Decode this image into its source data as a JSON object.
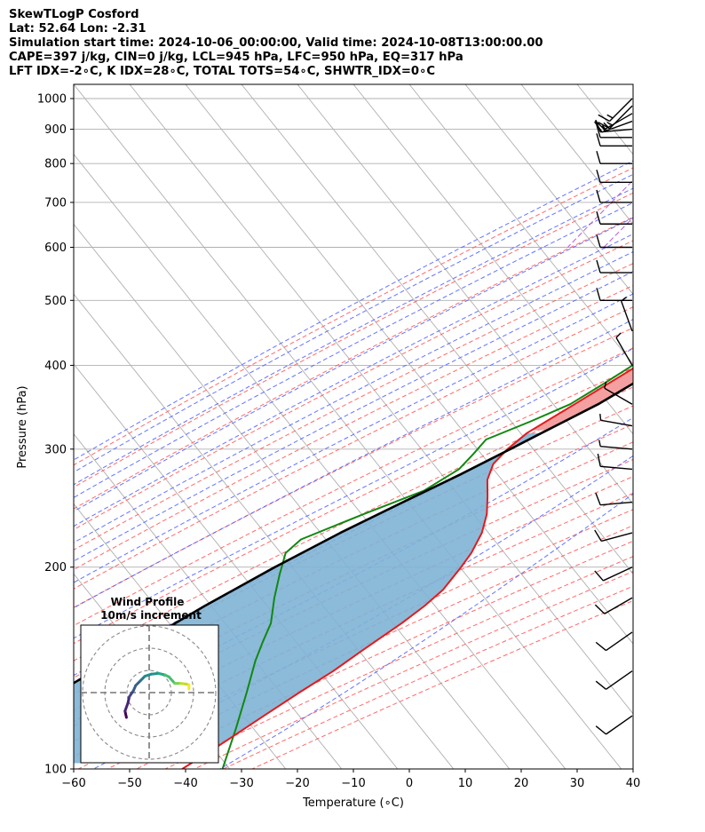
{
  "header": {
    "line1": "SkewTLogP Cosford",
    "line2": "Lat: 52.64   Lon: -2.31",
    "line3": "Simulation start time: 2024-10-06_00:00:00, Valid time: 2024-10-08T13:00:00.00",
    "line4": "CAPE=397 j/kg, CIN=0 j/kg, LCL=945 hPa, LFC=950 hPa, EQ=317 hPa",
    "line5": "LFT IDX=-2∘C, K IDX=28∘C, TOTAL TOTS=54∘C, SHWTR_IDX=0∘C"
  },
  "chart_data": {
    "type": "skew-t log-p",
    "xlabel": "Temperature (∘C)",
    "ylabel": "Pressure (hPa)",
    "xlim": [
      -60,
      40
    ],
    "ylim": [
      1050,
      100
    ],
    "x_ticks": [
      "−60",
      "−50",
      "−40",
      "−30",
      "−20",
      "−10",
      "0",
      "10",
      "20",
      "30",
      "40"
    ],
    "x_tick_values": [
      -60,
      -50,
      -40,
      -30,
      -20,
      -10,
      0,
      10,
      20,
      30,
      40
    ],
    "y_ticks": [
      "100",
      "200",
      "300",
      "400",
      "500",
      "600",
      "700",
      "800",
      "900",
      "1000"
    ],
    "y_tick_values": [
      100,
      200,
      300,
      400,
      500,
      600,
      700,
      800,
      900,
      1000
    ],
    "grid": true,
    "colors": {
      "temperature": "#e41a1c",
      "dewpoint": "#118811",
      "parcel": "#000000",
      "cape_fill": "#7fb2d5",
      "cin_fill": "#f4a0a0",
      "dry_adiabats": "#ff5a5a",
      "moist_adiabats": "#4a5aff",
      "mixing_ratio": "#b04ad0",
      "isotherms": "#b0b0b0"
    },
    "series": [
      {
        "key": "temperature",
        "points": [
          [
            1000,
            15.4
          ],
          [
            975,
            14.6
          ],
          [
            950,
            14.0
          ],
          [
            925,
            12.8
          ],
          [
            900,
            11.4
          ],
          [
            850,
            9.2
          ],
          [
            800,
            7.0
          ],
          [
            750,
            4.4
          ],
          [
            700,
            1.8
          ],
          [
            650,
            -0.6
          ],
          [
            600,
            -3.0
          ],
          [
            550,
            -5.8
          ],
          [
            500,
            -8.8
          ],
          [
            450,
            -12.6
          ],
          [
            400,
            -16.8
          ],
          [
            350,
            -22.6
          ],
          [
            317,
            -27.0
          ],
          [
            300,
            -28.2
          ],
          [
            285,
            -28.6
          ],
          [
            270,
            -27.4
          ],
          [
            255,
            -25.0
          ],
          [
            240,
            -22.6
          ],
          [
            225,
            -20.8
          ],
          [
            210,
            -19.8
          ],
          [
            200,
            -19.6
          ],
          [
            185,
            -19.6
          ],
          [
            175,
            -20.6
          ],
          [
            165,
            -22.2
          ],
          [
            150,
            -25.4
          ],
          [
            140,
            -27.6
          ],
          [
            130,
            -30.6
          ],
          [
            120,
            -33.6
          ],
          [
            110,
            -36.8
          ],
          [
            105,
            -38.6
          ],
          [
            100,
            -40.6
          ]
        ]
      },
      {
        "key": "dewpoint",
        "points": [
          [
            1000,
            13.4
          ],
          [
            975,
            13.2
          ],
          [
            950,
            12.4
          ],
          [
            925,
            10.4
          ],
          [
            900,
            9.4
          ],
          [
            850,
            7.6
          ],
          [
            800,
            5.0
          ],
          [
            750,
            1.8
          ],
          [
            700,
            -2.0
          ],
          [
            650,
            -5.2
          ],
          [
            600,
            -8.0
          ],
          [
            550,
            -9.0
          ],
          [
            500,
            -10.8
          ],
          [
            450,
            -13.4
          ],
          [
            400,
            -17.8
          ],
          [
            375,
            -20.4
          ],
          [
            350,
            -23.4
          ],
          [
            330,
            -28.0
          ],
          [
            310,
            -33.4
          ],
          [
            295,
            -33.6
          ],
          [
            280,
            -34.0
          ],
          [
            260,
            -37.2
          ],
          [
            240,
            -44.6
          ],
          [
            220,
            -52.2
          ],
          [
            210,
            -53.0
          ],
          [
            195,
            -51.0
          ],
          [
            180,
            -48.6
          ],
          [
            165,
            -45.6
          ],
          [
            155,
            -44.4
          ],
          [
            145,
            -43.0
          ],
          [
            130,
            -40.0
          ],
          [
            115,
            -36.8
          ],
          [
            100,
            -33.4
          ]
        ]
      },
      {
        "key": "parcel",
        "points": [
          [
            980,
            16.6
          ],
          [
            950,
            14.0
          ],
          [
            925,
            13.6
          ],
          [
            900,
            13.1
          ],
          [
            850,
            12.0
          ],
          [
            800,
            10.7
          ],
          [
            750,
            9.2
          ],
          [
            700,
            7.5
          ],
          [
            650,
            5.4
          ],
          [
            600,
            3.0
          ],
          [
            550,
            0.1
          ],
          [
            500,
            -3.2
          ],
          [
            450,
            -7.3
          ],
          [
            400,
            -12.2
          ],
          [
            350,
            -18.4
          ],
          [
            317,
            -24.4
          ],
          [
            300,
            -27.7
          ],
          [
            275,
            -33.0
          ],
          [
            250,
            -39.3
          ],
          [
            225,
            -46.1
          ],
          [
            200,
            -52.9
          ],
          [
            175,
            -59.9
          ],
          [
            150,
            -67.2
          ],
          [
            125,
            -75.6
          ],
          [
            100,
            -85.4
          ]
        ]
      }
    ],
    "wind_barbs": [
      {
        "p": 1000,
        "dir": 225,
        "kt": 15
      },
      {
        "p": 975,
        "dir": 225,
        "kt": 15
      },
      {
        "p": 950,
        "dir": 240,
        "kt": 15
      },
      {
        "p": 925,
        "dir": 250,
        "kt": 15
      },
      {
        "p": 900,
        "dir": 265,
        "kt": 15
      },
      {
        "p": 875,
        "dir": 270,
        "kt": 10
      },
      {
        "p": 850,
        "dir": 270,
        "kt": 10
      },
      {
        "p": 800,
        "dir": 270,
        "kt": 10
      },
      {
        "p": 750,
        "dir": 270,
        "kt": 10
      },
      {
        "p": 700,
        "dir": 270,
        "kt": 10
      },
      {
        "p": 650,
        "dir": 270,
        "kt": 10
      },
      {
        "p": 600,
        "dir": 270,
        "kt": 10
      },
      {
        "p": 550,
        "dir": 270,
        "kt": 10
      },
      {
        "p": 500,
        "dir": 270,
        "kt": 10
      },
      {
        "p": 450,
        "dir": 340,
        "kt": 5
      },
      {
        "p": 400,
        "dir": 330,
        "kt": 5
      },
      {
        "p": 350,
        "dir": 300,
        "kt": 5
      },
      {
        "p": 325,
        "dir": 280,
        "kt": 5
      },
      {
        "p": 300,
        "dir": 275,
        "kt": 5
      },
      {
        "p": 280,
        "dir": 275,
        "kt": 10
      },
      {
        "p": 250,
        "dir": 265,
        "kt": 10
      },
      {
        "p": 225,
        "dir": 255,
        "kt": 10
      },
      {
        "p": 200,
        "dir": 245,
        "kt": 10
      },
      {
        "p": 180,
        "dir": 240,
        "kt": 10
      },
      {
        "p": 160,
        "dir": 235,
        "kt": 10
      },
      {
        "p": 140,
        "dir": 235,
        "kt": 10
      },
      {
        "p": 120,
        "dir": 235,
        "kt": 10
      }
    ],
    "hodograph": {
      "title": "Wind Profile",
      "subtitle": "10m/s increment",
      "points": [
        [
          -3.2,
          -3.5
        ],
        [
          -3.4,
          -2.6
        ],
        [
          -3.0,
          -1.5
        ],
        [
          -2.8,
          -0.6
        ],
        [
          -2.2,
          0.3
        ],
        [
          -1.9,
          1.0
        ],
        [
          -1.2,
          1.7
        ],
        [
          -0.6,
          2.3
        ],
        [
          0.3,
          2.6
        ],
        [
          1.3,
          2.7
        ],
        [
          2.2,
          2.5
        ],
        [
          2.8,
          2.2
        ],
        [
          3.6,
          1.3
        ],
        [
          4.4,
          1.3
        ],
        [
          5.2,
          1.2
        ],
        [
          5.6,
          1.1
        ],
        [
          5.6,
          0.5
        ]
      ]
    }
  }
}
